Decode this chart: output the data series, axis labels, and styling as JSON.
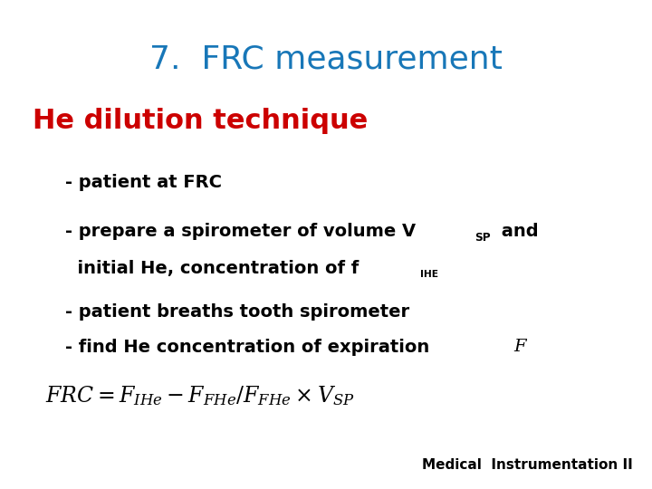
{
  "title": "7.  FRC measurement",
  "title_color": "#1877B8",
  "title_fontsize": 26,
  "title_fontweight": "normal",
  "subtitle": "He dilution technique",
  "subtitle_color": "#CC0000",
  "subtitle_fontsize": 22,
  "subtitle_fontweight": "bold",
  "bullet_color": "#000000",
  "bullet_fontsize": 14,
  "formula_fontsize": 17,
  "footer": "Medical  Instrumentation II",
  "footer_fontsize": 11,
  "background_color": "#FFFFFF",
  "bullet1": "- patient at FRC",
  "bullet2_part1": "- prepare a spirometer of volume V",
  "bullet2_sub": "SP",
  "bullet2_part2": " and",
  "bullet2_line2_part1": "  initial He, concentration of f",
  "bullet2_line2_sub": "IHE",
  "bullet3": "- patient breaths tooth spirometer",
  "bullet4_part1": "- find He concentration of expiration ",
  "bullet4_F": "F"
}
